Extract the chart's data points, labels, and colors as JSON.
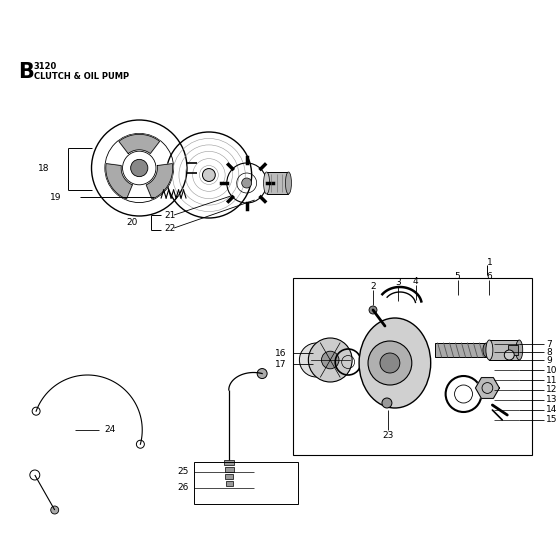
{
  "title_letter": "B",
  "title_number": "3120",
  "title_text": "CLUTCH & OIL PUMP",
  "bg_color": "#ffffff",
  "lc": "#000000",
  "fig_width": 5.6,
  "fig_height": 5.6,
  "dpi": 100
}
